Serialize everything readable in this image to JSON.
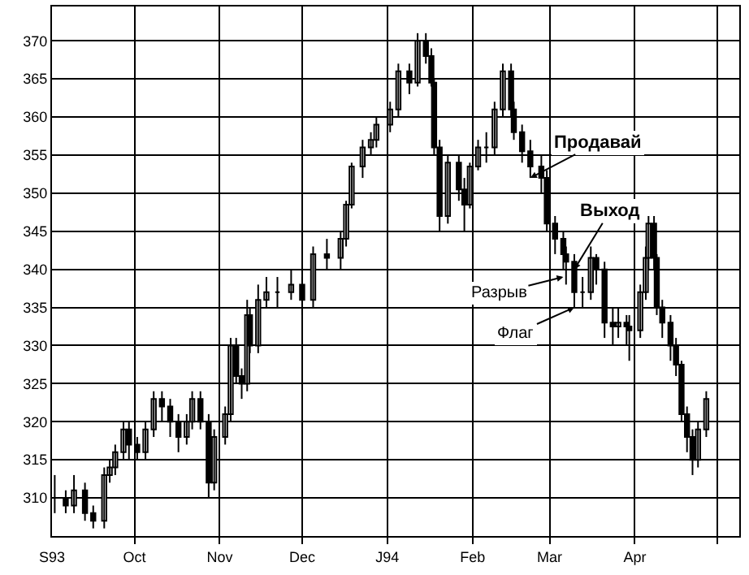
{
  "chart_data": {
    "type": "candlestick",
    "x": [
      "1993-09-02",
      "1993-09-06",
      "1993-09-09",
      "1993-09-13",
      "1993-09-16",
      "1993-09-20",
      "1993-09-22",
      "1993-09-24",
      "1993-09-27",
      "1993-09-29",
      "1993-10-02",
      "1993-10-05",
      "1993-10-08",
      "1993-10-11",
      "1993-10-14",
      "1993-10-17",
      "1993-10-20",
      "1993-10-22",
      "1993-10-25",
      "1993-10-28",
      "1993-10-30",
      "1993-11-03",
      "1993-11-05",
      "1993-11-07",
      "1993-11-09",
      "1993-11-11",
      "1993-11-12",
      "1993-11-15",
      "1993-11-18",
      "1993-11-22",
      "1993-11-27",
      "1993-12-01",
      "1993-12-05",
      "1993-12-10",
      "1993-12-15",
      "1993-12-17",
      "1993-12-19",
      "1993-12-23",
      "1993-12-26",
      "1993-12-28",
      "1994-01-02",
      "1994-01-05",
      "1994-01-09",
      "1994-01-12",
      "1994-01-15",
      "1994-01-17",
      "1994-01-18",
      "1994-01-20",
      "1994-01-23",
      "1994-01-27",
      "1994-01-29",
      "1994-01-31",
      "1994-02-03",
      "1994-02-06",
      "1994-02-09",
      "1994-02-12",
      "1994-02-15",
      "1994-02-16",
      "1994-02-19",
      "1994-02-22",
      "1994-02-26",
      "1994-02-28",
      "1994-03-03",
      "1994-03-06",
      "1994-03-07",
      "1994-03-10",
      "1994-03-13",
      "1994-03-16",
      "1994-03-18",
      "1994-03-21",
      "1994-03-24",
      "1994-03-26",
      "1994-03-29",
      "1994-03-30",
      "1994-04-03",
      "1994-04-05",
      "1994-04-06",
      "1994-04-08",
      "1994-04-09",
      "1994-04-11",
      "1994-04-14",
      "1994-04-16",
      "1994-04-18",
      "1994-04-20",
      "1994-04-22",
      "1994-04-24",
      "1994-04-27"
    ],
    "ohlc": [
      [
        310,
        313,
        308,
        310
      ],
      [
        310,
        311,
        308,
        309
      ],
      [
        309,
        313,
        308,
        311
      ],
      [
        311,
        312,
        307,
        308
      ],
      [
        308,
        309,
        306,
        307
      ],
      [
        307,
        314,
        306,
        313
      ],
      [
        313,
        315,
        312,
        314
      ],
      [
        314,
        317,
        313,
        316
      ],
      [
        316,
        320,
        315,
        319
      ],
      [
        319,
        320,
        315,
        317
      ],
      [
        317,
        318,
        315,
        316
      ],
      [
        316,
        320,
        315,
        319
      ],
      [
        319,
        324,
        318,
        323
      ],
      [
        323,
        324,
        320,
        322
      ],
      [
        322,
        323,
        318,
        320
      ],
      [
        320,
        321,
        316,
        318
      ],
      [
        318,
        321,
        317,
        320
      ],
      [
        320,
        324,
        319,
        323
      ],
      [
        323,
        324,
        319,
        320
      ],
      [
        320,
        321,
        310,
        312
      ],
      [
        312,
        319,
        311,
        318
      ],
      [
        318,
        322,
        317,
        321
      ],
      [
        321,
        331,
        320,
        330
      ],
      [
        330,
        331,
        325,
        326
      ],
      [
        326,
        327,
        323,
        325
      ],
      [
        325,
        336,
        324,
        334
      ],
      [
        334,
        335,
        329,
        330
      ],
      [
        330,
        338,
        329,
        336
      ],
      [
        336,
        339,
        335,
        337
      ],
      [
        337,
        339,
        335,
        337
      ],
      [
        337,
        340,
        336,
        338
      ],
      [
        338,
        339,
        334,
        336
      ],
      [
        336,
        343,
        335,
        342
      ],
      [
        342,
        344,
        340,
        341.5
      ],
      [
        341.5,
        345,
        340,
        344
      ],
      [
        344,
        349,
        343,
        348.5
      ],
      [
        348.5,
        354,
        348,
        353.5
      ],
      [
        353.5,
        357,
        352,
        356
      ],
      [
        356,
        358,
        355,
        357
      ],
      [
        357,
        360,
        356,
        359
      ],
      [
        359,
        362,
        358,
        361
      ],
      [
        361,
        367,
        360,
        366
      ],
      [
        366,
        367,
        363,
        364.5
      ],
      [
        364.5,
        371,
        364,
        370
      ],
      [
        370,
        371,
        367,
        368
      ],
      [
        368,
        369,
        364,
        364.5
      ],
      [
        364.5,
        365,
        355,
        356
      ],
      [
        356,
        357,
        345,
        347
      ],
      [
        347,
        355,
        346,
        354
      ],
      [
        354,
        355,
        349,
        350.5
      ],
      [
        350.5,
        352,
        345,
        348.5
      ],
      [
        348.5,
        354,
        348,
        353.5
      ],
      [
        353.5,
        357,
        353,
        356
      ],
      [
        356,
        358,
        354,
        356
      ],
      [
        356,
        362,
        355,
        361
      ],
      [
        361,
        367,
        360,
        366
      ],
      [
        366,
        367,
        360,
        361
      ],
      [
        361,
        362,
        357,
        358
      ],
      [
        358,
        359,
        354,
        355.5
      ],
      [
        355.5,
        357,
        352,
        353.5
      ],
      [
        353.5,
        355,
        350,
        352
      ],
      [
        352,
        353,
        345,
        346
      ],
      [
        346,
        347,
        342,
        344
      ],
      [
        344,
        345,
        340,
        342
      ],
      [
        342,
        343,
        338,
        341
      ],
      [
        341,
        342,
        335,
        337
      ],
      [
        337,
        339,
        335,
        337
      ],
      [
        337,
        343,
        336,
        341.5
      ],
      [
        341.5,
        342,
        338,
        340
      ],
      [
        340,
        341,
        331,
        333
      ],
      [
        333,
        335,
        330,
        332.5
      ],
      [
        332.5,
        335,
        331,
        333
      ],
      [
        333,
        334,
        330,
        332.5
      ],
      [
        332.5,
        334,
        328,
        332
      ],
      [
        332,
        338,
        331,
        337
      ],
      [
        337,
        343,
        336,
        341.5
      ],
      [
        341.5,
        347,
        340,
        346
      ],
      [
        346,
        347,
        340,
        341.5
      ],
      [
        341.5,
        342,
        334,
        335
      ],
      [
        335,
        336,
        331,
        333
      ],
      [
        333,
        334,
        328,
        330
      ],
      [
        330,
        331,
        326,
        327.5
      ],
      [
        327.5,
        328,
        320,
        321
      ],
      [
        321,
        322,
        316,
        318
      ],
      [
        318,
        319,
        313,
        315
      ],
      [
        315,
        320,
        314,
        319
      ],
      [
        319,
        324,
        318,
        323
      ]
    ],
    "color": "#000000",
    "ylim": [
      305,
      374.5
    ],
    "yticks": [
      310,
      315,
      320,
      325,
      330,
      335,
      340,
      345,
      350,
      355,
      360,
      365,
      370
    ],
    "xlim": [
      "1993-09-01",
      "1994-05-09"
    ],
    "xticks": [
      {
        "value": "1993-09-01",
        "label": "S93"
      },
      {
        "value": "1993-10-01",
        "label": "Oct"
      },
      {
        "value": "1993-11-01",
        "label": "Nov"
      },
      {
        "value": "1993-12-01",
        "label": "Dec"
      },
      {
        "value": "1994-01-01",
        "label": "J94"
      },
      {
        "value": "1994-02-01",
        "label": "Feb"
      },
      {
        "value": "1994-03-01",
        "label": "Mar"
      },
      {
        "value": "1994-04-01",
        "label": "Apr"
      },
      {
        "value": "1994-05-01",
        "label": null
      }
    ],
    "grid": true,
    "annotations": [
      {
        "text": "Продавай",
        "x": "1994-02-22",
        "y": 352
      },
      {
        "text": "Выход",
        "x": "1994-03-10",
        "y": 340
      },
      {
        "text": "Разрыв",
        "x": "1994-03-06",
        "y": 339
      },
      {
        "text": "Флаг",
        "x": "1994-03-10",
        "y": 335
      }
    ]
  }
}
